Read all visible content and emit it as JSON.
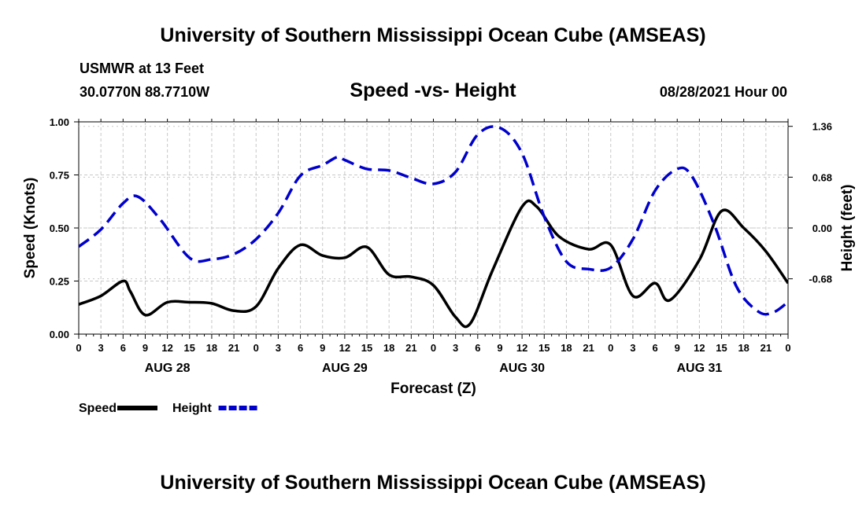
{
  "page": {
    "title_top": "University of Southern Mississippi Ocean Cube (AMSEAS)",
    "title_bottom": "University of Southern Mississippi Ocean Cube (AMSEAS)",
    "station": "USMWR at 13 Feet",
    "coords": "30.0770N  88.7710W",
    "subtitle": "Speed -vs- Height",
    "datetime": "08/28/2021 Hour 00"
  },
  "chart_data": {
    "type": "line",
    "title": "Speed -vs- Height",
    "xlabel": "Forecast (Z)",
    "ylabel_left": "Speed (Knots)",
    "ylabel_right": "Height (feet)",
    "x_range_hours": [
      0,
      96
    ],
    "x_tick_labels": [
      "0",
      "3",
      "6",
      "9",
      "12",
      "15",
      "18",
      "21",
      "0",
      "3",
      "6",
      "9",
      "12",
      "15",
      "18",
      "21",
      "0",
      "3",
      "6",
      "9",
      "12",
      "15",
      "18",
      "21",
      "0",
      "3",
      "6",
      "9",
      "12",
      "15",
      "18",
      "21",
      "0"
    ],
    "day_labels": [
      {
        "label": "AUG 28",
        "hour": 12
      },
      {
        "label": "AUG 29",
        "hour": 36
      },
      {
        "label": "AUG 30",
        "hour": 60
      },
      {
        "label": "AUG 31",
        "hour": 84
      }
    ],
    "ylim_left": [
      0,
      1.0
    ],
    "yticks_left": [
      "0.00",
      "0.25",
      "0.50",
      "0.75",
      "1.00"
    ],
    "ylim_right": [
      -1.42,
      1.42
    ],
    "yticks_right": [
      {
        "value": -0.68,
        "label": "-0.68"
      },
      {
        "value": 0.0,
        "label": "0.00"
      },
      {
        "value": 0.68,
        "label": "0.68"
      },
      {
        "value": 1.36,
        "label": "1.36"
      }
    ],
    "grid": true,
    "legend_position": "bottom-left",
    "series": [
      {
        "name": "Speed",
        "axis": "left",
        "color": "#000000",
        "style": "solid",
        "points": [
          [
            0,
            0.14
          ],
          [
            3,
            0.18
          ],
          [
            6,
            0.25
          ],
          [
            7,
            0.2
          ],
          [
            9,
            0.09
          ],
          [
            12,
            0.15
          ],
          [
            15,
            0.15
          ],
          [
            18,
            0.145
          ],
          [
            21,
            0.11
          ],
          [
            24,
            0.13
          ],
          [
            27,
            0.31
          ],
          [
            30,
            0.42
          ],
          [
            33,
            0.37
          ],
          [
            36,
            0.36
          ],
          [
            39,
            0.41
          ],
          [
            42,
            0.28
          ],
          [
            45,
            0.27
          ],
          [
            48,
            0.23
          ],
          [
            51,
            0.08
          ],
          [
            53,
            0.05
          ],
          [
            56,
            0.3
          ],
          [
            60,
            0.6
          ],
          [
            62,
            0.6
          ],
          [
            65,
            0.46
          ],
          [
            69,
            0.4
          ],
          [
            72,
            0.42
          ],
          [
            75,
            0.18
          ],
          [
            78,
            0.24
          ],
          [
            80,
            0.16
          ],
          [
            84,
            0.35
          ],
          [
            87,
            0.58
          ],
          [
            90,
            0.5
          ],
          [
            93,
            0.39
          ],
          [
            96,
            0.24
          ]
        ]
      },
      {
        "name": "Height",
        "axis": "right",
        "color": "#0000cc",
        "style": "dashed",
        "points": [
          [
            0,
            -0.25
          ],
          [
            3,
            -0.02
          ],
          [
            6,
            0.33
          ],
          [
            8,
            0.42
          ],
          [
            11,
            0.12
          ],
          [
            15,
            -0.4
          ],
          [
            18,
            -0.42
          ],
          [
            21,
            -0.35
          ],
          [
            24,
            -0.15
          ],
          [
            27,
            0.2
          ],
          [
            30,
            0.7
          ],
          [
            33,
            0.84
          ],
          [
            35,
            0.95
          ],
          [
            36,
            0.91
          ],
          [
            39,
            0.79
          ],
          [
            42,
            0.77
          ],
          [
            45,
            0.67
          ],
          [
            48,
            0.59
          ],
          [
            51,
            0.75
          ],
          [
            54,
            1.25
          ],
          [
            57,
            1.34
          ],
          [
            60,
            1.0
          ],
          [
            63,
            0.15
          ],
          [
            66,
            -0.45
          ],
          [
            69,
            -0.55
          ],
          [
            72,
            -0.53
          ],
          [
            75,
            -0.15
          ],
          [
            78,
            0.5
          ],
          [
            81,
            0.79
          ],
          [
            83,
            0.69
          ],
          [
            86,
            0.05
          ],
          [
            89,
            -0.78
          ],
          [
            92,
            -1.12
          ],
          [
            94,
            -1.13
          ],
          [
            96,
            -0.99
          ]
        ]
      }
    ]
  }
}
